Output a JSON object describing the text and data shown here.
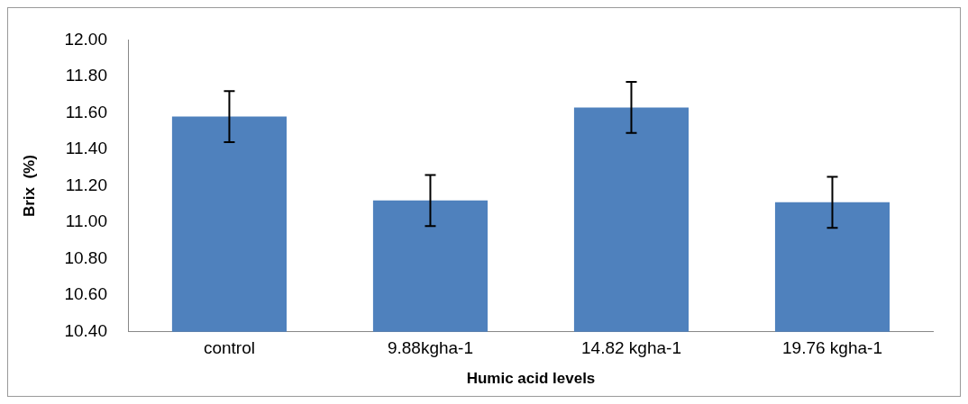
{
  "chart_data": {
    "type": "bar",
    "xlabel": "Humic acid levels",
    "ylabel": "Brix  (%)",
    "categories": [
      "control",
      "9.88kgha-1",
      "14.82 kgha-1",
      "19.76 kgha-1"
    ],
    "values": [
      11.58,
      11.12,
      11.63,
      11.11
    ],
    "errors": [
      0.14,
      0.14,
      0.14,
      0.14
    ],
    "color": "#4f81bd",
    "ylim": [
      10.4,
      12.0
    ],
    "yticks": [
      {
        "value": 10.4,
        "label": "10.40"
      },
      {
        "value": 10.6,
        "label": "10.60"
      },
      {
        "value": 10.8,
        "label": "10.80"
      },
      {
        "value": 11.0,
        "label": "11.00"
      },
      {
        "value": 11.2,
        "label": "11.20"
      },
      {
        "value": 11.4,
        "label": "11.40"
      },
      {
        "value": 11.6,
        "label": "11.60"
      },
      {
        "value": 11.8,
        "label": "11.80"
      },
      {
        "value": 12.0,
        "label": "12.00"
      }
    ],
    "grid": false,
    "legend": false
  }
}
